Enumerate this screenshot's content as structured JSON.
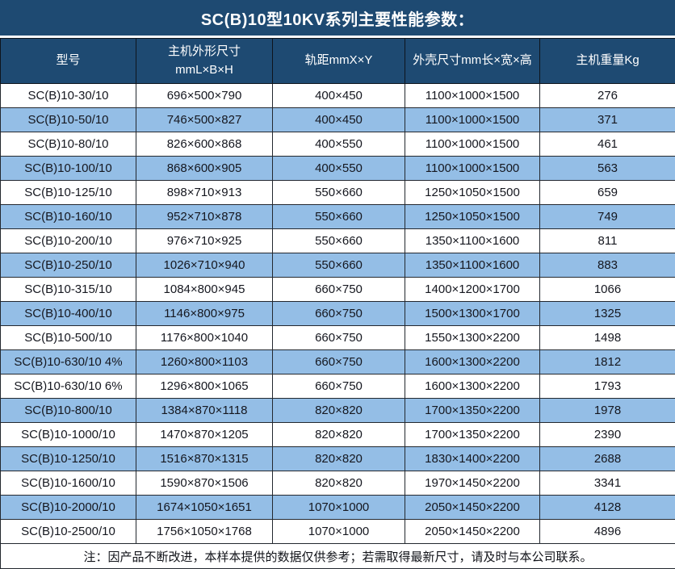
{
  "title": "SC(B)10型10KV系列主要性能参数：",
  "colors": {
    "header_bg": "#1E4A72",
    "alt_row_bg": "#94BEE6",
    "grid_line": "#23282f"
  },
  "table": {
    "headers": [
      {
        "label": "型号",
        "sub": ""
      },
      {
        "label": "主机外形尺寸",
        "sub": "mmL×B×H"
      },
      {
        "label": "轨距mmX×Y",
        "sub": ""
      },
      {
        "label": "外壳尺寸mm长×宽×高",
        "sub": ""
      },
      {
        "label": "主机重量Kg",
        "sub": ""
      }
    ],
    "rows": [
      [
        "SC(B)10-30/10",
        "696×500×790",
        "400×450",
        "1100×1000×1500",
        "276"
      ],
      [
        "SC(B)10-50/10",
        "746×500×827",
        "400×450",
        "1100×1000×1500",
        "371"
      ],
      [
        "SC(B)10-80/10",
        "826×600×868",
        "400×550",
        "1100×1000×1500",
        "461"
      ],
      [
        "SC(B)10-100/10",
        "868×600×905",
        "400×550",
        "1100×1000×1500",
        "563"
      ],
      [
        "SC(B)10-125/10",
        "898×710×913",
        "550×660",
        "1250×1050×1500",
        "659"
      ],
      [
        "SC(B)10-160/10",
        "952×710×878",
        "550×660",
        "1250×1050×1500",
        "749"
      ],
      [
        "SC(B)10-200/10",
        "976×710×925",
        "550×660",
        "1350×1100×1600",
        "811"
      ],
      [
        "SC(B)10-250/10",
        "1026×710×940",
        "550×660",
        "1350×1100×1600",
        "883"
      ],
      [
        "SC(B)10-315/10",
        "1084×800×945",
        "660×750",
        "1400×1200×1700",
        "1066"
      ],
      [
        "SC(B)10-400/10",
        "1146×800×975",
        "660×750",
        "1500×1300×1700",
        "1325"
      ],
      [
        "SC(B)10-500/10",
        "1176×800×1040",
        "660×750",
        "1550×1300×2200",
        "1498"
      ],
      [
        "SC(B)10-630/10 4%",
        "1260×800×1103",
        "660×750",
        "1600×1300×2200",
        "1812"
      ],
      [
        "SC(B)10-630/10 6%",
        "1296×800×1065",
        "660×750",
        "1600×1300×2200",
        "1793"
      ],
      [
        "SC(B)10-800/10",
        "1384×870×1118",
        "820×820",
        "1700×1350×2200",
        "1978"
      ],
      [
        "SC(B)10-1000/10",
        "1470×870×1205",
        "820×820",
        "1700×1350×2200",
        "2390"
      ],
      [
        "SC(B)10-1250/10",
        "1516×870×1315",
        "820×820",
        "1830×1400×2200",
        "2688"
      ],
      [
        "SC(B)10-1600/10",
        "1590×870×1506",
        "820×820",
        "1970×1450×2200",
        "3341"
      ],
      [
        "SC(B)10-2000/10",
        "1674×1050×1651",
        "1070×1000",
        "2050×1450×2200",
        "4128"
      ],
      [
        "SC(B)10-2500/10",
        "1756×1050×1768",
        "1070×1000",
        "2050×1450×2200",
        "4896"
      ]
    ],
    "note": "注：因产品不断改进，本样本提供的数据仅供参考；若需取得最新尺寸，请及时与本公司联系。"
  }
}
